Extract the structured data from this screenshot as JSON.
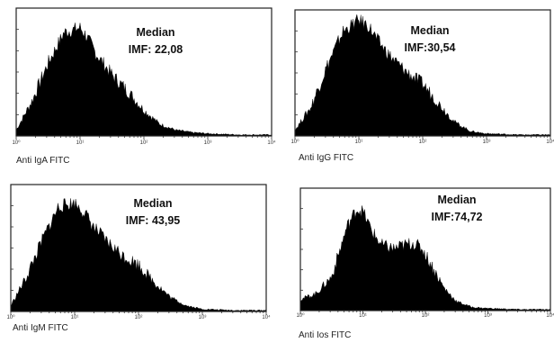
{
  "chart_data": [
    {
      "type": "area",
      "panel": "top-left",
      "xlabel": "Anti IgA FITC",
      "x_scale": "log",
      "xlim": [
        1,
        10000
      ],
      "x_ticks": [
        "10⁰",
        "10¹",
        "10²",
        "10³",
        "10⁴"
      ],
      "grid": false,
      "annotation": [
        "Median",
        "IMF: 22,08"
      ],
      "median": 22.08,
      "series": [
        {
          "x_log10": [
            0,
            0.25,
            0.5,
            0.75,
            1.0,
            1.1,
            1.25,
            1.5,
            1.75,
            2.0,
            2.25,
            2.5,
            2.75,
            3.0,
            3.5,
            4.0
          ],
          "y_rel": [
            0.05,
            0.3,
            0.62,
            0.88,
            0.92,
            0.85,
            0.7,
            0.52,
            0.38,
            0.22,
            0.1,
            0.05,
            0.03,
            0.02,
            0.01,
            0.01
          ]
        }
      ]
    },
    {
      "type": "area",
      "panel": "top-right",
      "xlabel": "Anti IgG FITC",
      "x_scale": "log",
      "xlim": [
        1,
        10000
      ],
      "x_ticks": [
        "10⁰",
        "10¹",
        "10²",
        "10³",
        "10⁴"
      ],
      "grid": false,
      "annotation": [
        "Median",
        "IMF:30,54"
      ],
      "median": 30.54,
      "series": [
        {
          "x_log10": [
            0,
            0.25,
            0.5,
            0.75,
            1.0,
            1.15,
            1.3,
            1.5,
            1.75,
            2.0,
            2.25,
            2.5,
            2.75,
            3.0,
            3.5,
            4.0
          ],
          "y_rel": [
            0.05,
            0.25,
            0.6,
            0.9,
            1.0,
            0.95,
            0.82,
            0.68,
            0.55,
            0.45,
            0.28,
            0.12,
            0.04,
            0.02,
            0.01,
            0.01
          ]
        }
      ]
    },
    {
      "type": "area",
      "panel": "bottom-left",
      "xlabel": "Anti IgM FITC",
      "x_scale": "log",
      "xlim": [
        1,
        10000
      ],
      "x_ticks": [
        "10⁰",
        "10¹",
        "10²",
        "10³",
        "10⁴"
      ],
      "grid": false,
      "annotation": [
        "Median",
        "IMF: 43,95"
      ],
      "median": 43.95,
      "series": [
        {
          "x_log10": [
            0,
            0.25,
            0.5,
            0.75,
            1.0,
            1.15,
            1.3,
            1.5,
            1.75,
            2.0,
            2.25,
            2.5,
            2.75,
            3.0,
            3.5,
            4.0
          ],
          "y_rel": [
            0.05,
            0.3,
            0.62,
            0.9,
            0.93,
            0.85,
            0.72,
            0.6,
            0.48,
            0.4,
            0.25,
            0.12,
            0.05,
            0.02,
            0.01,
            0.01
          ]
        }
      ]
    },
    {
      "type": "area",
      "panel": "bottom-right",
      "xlabel": "Anti Ios FITC",
      "x_scale": "log",
      "xlim": [
        1,
        10000
      ],
      "x_ticks": [
        "10⁰",
        "10¹",
        "10²",
        "10³",
        "10⁴"
      ],
      "grid": false,
      "annotation": [
        "Median",
        "IMF:74,72"
      ],
      "median": 74.72,
      "series": [
        {
          "x_log10": [
            0,
            0.25,
            0.5,
            0.75,
            0.9,
            1.0,
            1.15,
            1.3,
            1.5,
            1.65,
            1.8,
            1.95,
            2.1,
            2.3,
            2.5,
            2.75,
            3.0,
            3.5,
            4.0
          ],
          "y_rel": [
            0.1,
            0.15,
            0.3,
            0.75,
            0.9,
            0.88,
            0.7,
            0.58,
            0.55,
            0.58,
            0.6,
            0.55,
            0.4,
            0.2,
            0.08,
            0.03,
            0.02,
            0.01,
            0.01
          ]
        }
      ]
    }
  ]
}
